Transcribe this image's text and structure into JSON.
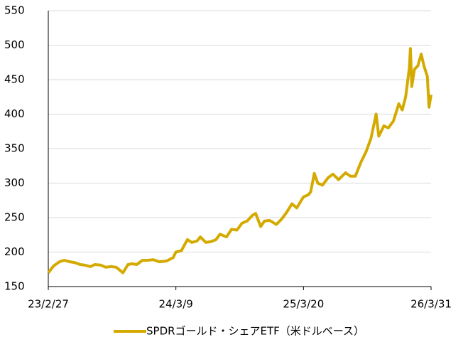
{
  "chart_data": {
    "type": "line",
    "x": [
      "23/2/27",
      "23/3/15",
      "23/4/1",
      "23/4/15",
      "23/5/1",
      "23/5/15",
      "23/6/1",
      "23/6/15",
      "23/7/1",
      "23/7/15",
      "23/8/1",
      "23/8/15",
      "23/9/1",
      "23/9/15",
      "23/10/5",
      "23/10/20",
      "23/11/1",
      "23/11/15",
      "23/12/1",
      "23/12/15",
      "24/1/2",
      "24/1/20",
      "24/2/10",
      "24/3/1",
      "24/3/9",
      "24/3/25",
      "24/4/12",
      "24/4/25",
      "24/5/10",
      "24/5/20",
      "24/6/5",
      "24/6/20",
      "24/7/5",
      "24/7/17",
      "24/8/5",
      "24/8/20",
      "24/9/5",
      "24/9/20",
      "24/10/5",
      "24/10/20",
      "24/10/30",
      "24/11/14",
      "24/11/25",
      "24/12/10",
      "24/12/30",
      "25/1/15",
      "25/1/30",
      "25/2/14",
      "25/2/28",
      "25/3/20",
      "25/4/3",
      "25/4/10",
      "25/4/21",
      "25/5/1",
      "25/5/15",
      "25/6/1",
      "25/6/15",
      "25/7/1",
      "25/7/22",
      "25/8/5",
      "25/8/20",
      "25/9/5",
      "25/9/20",
      "25/10/5",
      "25/10/20",
      "25/10/28",
      "25/11/12",
      "25/11/25",
      "25/12/10",
      "25/12/26",
      "26/1/5",
      "26/1/15",
      "26/1/26",
      "26/1/29",
      "26/2/2",
      "26/2/10",
      "26/2/20",
      "26/3/2",
      "26/3/10",
      "26/3/20",
      "26/3/25",
      "26/3/31"
    ],
    "series": [
      {
        "name": "SPDRゴールド・シェアETF（米ドルベース）",
        "color": "#d4aa00",
        "values": [
          170,
          180,
          186,
          188,
          186,
          185,
          182,
          181,
          179,
          182,
          181,
          178,
          179,
          178,
          170,
          182,
          183,
          182,
          188,
          188,
          189,
          186,
          187,
          192,
          200,
          202,
          218,
          214,
          216,
          222,
          214,
          215,
          218,
          226,
          222,
          233,
          232,
          242,
          245,
          253,
          256,
          237,
          245,
          246,
          240,
          248,
          258,
          270,
          264,
          280,
          283,
          287,
          314,
          300,
          297,
          308,
          313,
          305,
          315,
          310,
          310,
          330,
          345,
          365,
          400,
          368,
          383,
          380,
          390,
          415,
          406,
          425,
          467,
          495,
          440,
          465,
          470,
          487,
          470,
          455,
          410,
          428
        ]
      }
    ],
    "xticks": [
      "23/2/27",
      "24/3/9",
      "25/3/20",
      "26/3/31"
    ],
    "ylim": [
      150,
      550
    ],
    "yticks": [
      150,
      200,
      250,
      300,
      350,
      400,
      450,
      500,
      550
    ],
    "grid": true
  }
}
